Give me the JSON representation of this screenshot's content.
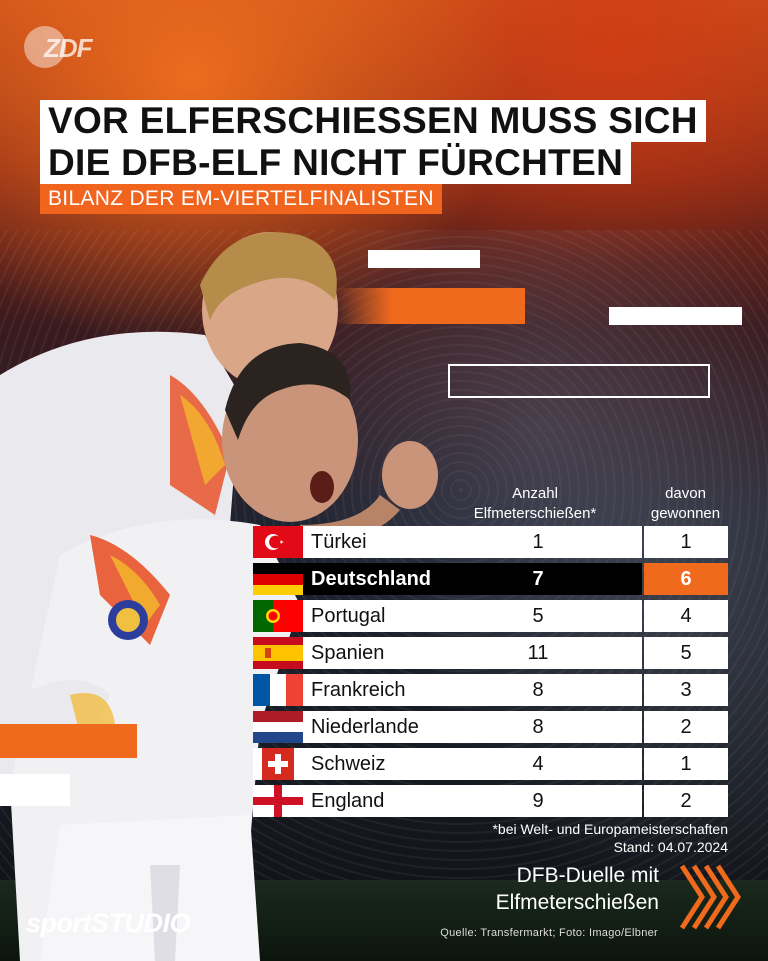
{
  "brand": {
    "broadcaster_logo": "ZDF",
    "sport_part1": "sport",
    "sport_part2": "STUDIO"
  },
  "headline": {
    "line1": "VOR ELFERSCHIESSEN MUSS SICH",
    "line2": "DIE DFB-ELF NICHT FÜRCHTEN",
    "subtitle": "BILANZ DER EM-VIERTELFINALISTEN"
  },
  "table": {
    "col_count_header_1": "Anzahl",
    "col_count_header_2": "Elfmeterschießen*",
    "col_won_header_1": "davon",
    "col_won_header_2": "gewonnen",
    "rows": [
      {
        "country": "Türkei",
        "flag": "turkey-flag",
        "count": "1",
        "won": "1"
      },
      {
        "country": "Deutschland",
        "flag": "germany-flag",
        "count": "7",
        "won": "6"
      },
      {
        "country": "Portugal",
        "flag": "portugal-flag",
        "count": "5",
        "won": "4"
      },
      {
        "country": "Spanien",
        "flag": "spain-flag",
        "count": "11",
        "won": "5"
      },
      {
        "country": "Frankreich",
        "flag": "france-flag",
        "count": "8",
        "won": "3"
      },
      {
        "country": "Niederlande",
        "flag": "netherlands-flag",
        "count": "8",
        "won": "2"
      },
      {
        "country": "Schweiz",
        "flag": "switzerland-flag",
        "count": "4",
        "won": "1"
      },
      {
        "country": "England",
        "flag": "england-flag",
        "count": "9",
        "won": "2"
      }
    ],
    "highlight_color": "#f06a1e"
  },
  "footnote": {
    "line1": "*bei Welt- und Europameisterschaften",
    "line2": "Stand: 04.07.2024"
  },
  "cta": {
    "line1": "DFB-Duelle mit",
    "line2": "Elfmeterschießen",
    "icon": "chevron-right-icon"
  },
  "source": "Quelle: Transfermarkt; Foto: Imago/Elbner",
  "colors": {
    "accent": "#f06a1e"
  }
}
